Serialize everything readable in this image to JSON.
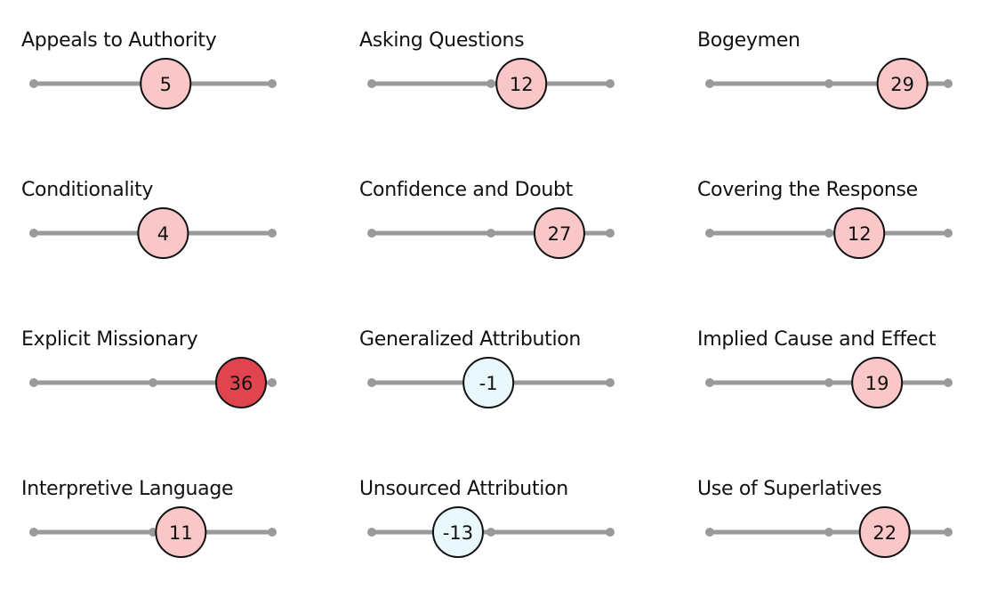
{
  "chart_data": {
    "type": "gauge-grid",
    "colors": {
      "track": "#9a9a9a",
      "positive": "#f9c7c8",
      "strong_positive": "#e0454f",
      "negative": "#e8f8fd",
      "outline": "#111111"
    },
    "items": [
      {
        "label": "Appeals to Authority",
        "value": 5
      },
      {
        "label": "Asking Questions",
        "value": 12
      },
      {
        "label": "Bogeymen",
        "value": 29
      },
      {
        "label": "Conditionality",
        "value": 4
      },
      {
        "label": "Confidence and Doubt",
        "value": 27
      },
      {
        "label": "Covering the Response",
        "value": 12
      },
      {
        "label": "Explicit Missionary",
        "value": 36
      },
      {
        "label": "Generalized Attribution",
        "value": -1
      },
      {
        "label": "Implied Cause and Effect",
        "value": 19
      },
      {
        "label": "Interpretive Language",
        "value": 11
      },
      {
        "label": "Unsourced Attribution",
        "value": -13
      },
      {
        "label": "Use of Superlatives",
        "value": 22
      }
    ]
  }
}
